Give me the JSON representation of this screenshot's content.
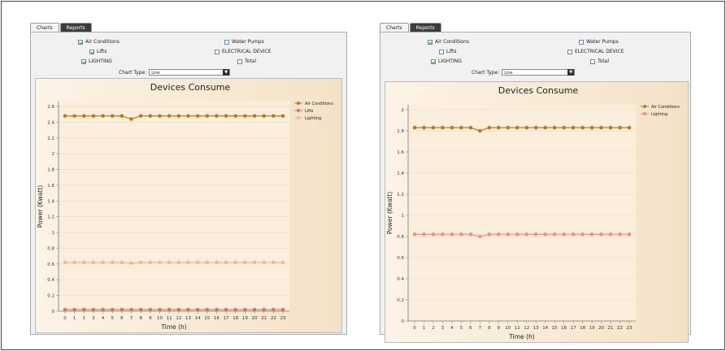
{
  "panels": [
    {
      "tabs": [
        {
          "label": "Charts",
          "active": true
        },
        {
          "label": "Reports",
          "active": false
        }
      ],
      "checkboxes": [
        {
          "label": "Air Conditions",
          "checked": true
        },
        {
          "label": "Lifts",
          "checked": true
        },
        {
          "label": "LIGHTING",
          "checked": true
        },
        {
          "label": "Water Pumps",
          "checked": false
        },
        {
          "label": "ELECTRICAL DEVICE",
          "checked": false
        },
        {
          "label": "Total",
          "checked": false
        }
      ],
      "chart_type_label": "Chart Type:",
      "chart_type_value": "Line",
      "chart_data": {
        "type": "line",
        "title": "Devices Consume",
        "xlabel": "Time (h)",
        "ylabel": "Power (Kwatt)",
        "x": [
          0,
          1,
          2,
          3,
          4,
          5,
          6,
          7,
          8,
          9,
          10,
          11,
          12,
          13,
          14,
          15,
          16,
          17,
          18,
          19,
          20,
          21,
          22,
          23
        ],
        "xticks": [
          "0",
          "1",
          "2",
          "3",
          "4",
          "5",
          "6",
          "7",
          "8",
          "9",
          "10",
          "11",
          "12",
          "13",
          "14",
          "15",
          "16",
          "17",
          "18",
          "19",
          "20",
          "21",
          "22",
          "23"
        ],
        "ylim": [
          0,
          2.6
        ],
        "yticks": [
          "0",
          "0.2",
          "0.4",
          "0.6",
          "0.8",
          "1",
          "1.2",
          "1.4",
          "1.6",
          "1.8",
          "2",
          "2.2",
          "2.4",
          "2.6"
        ],
        "legend_position": "top-right",
        "series": [
          {
            "name": "Air Conditions",
            "color": "#b8791e",
            "values": [
              2.48,
              2.48,
              2.48,
              2.48,
              2.48,
              2.48,
              2.48,
              2.44,
              2.48,
              2.48,
              2.48,
              2.48,
              2.48,
              2.48,
              2.48,
              2.48,
              2.48,
              2.48,
              2.48,
              2.48,
              2.48,
              2.48,
              2.48,
              2.48
            ]
          },
          {
            "name": "Lifts",
            "color": "#c87b5a",
            "values": [
              0.02,
              0.02,
              0.02,
              0.02,
              0.02,
              0.02,
              0.02,
              0.02,
              0.02,
              0.02,
              0.02,
              0.02,
              0.02,
              0.02,
              0.02,
              0.02,
              0.02,
              0.02,
              0.02,
              0.02,
              0.02,
              0.02,
              0.02,
              0.02
            ]
          },
          {
            "name": "Lighting",
            "color": "#f3b98b",
            "values": [
              0.62,
              0.62,
              0.62,
              0.62,
              0.62,
              0.62,
              0.62,
              0.61,
              0.62,
              0.62,
              0.62,
              0.62,
              0.62,
              0.62,
              0.62,
              0.62,
              0.62,
              0.62,
              0.62,
              0.62,
              0.62,
              0.62,
              0.62,
              0.62
            ]
          }
        ]
      }
    },
    {
      "tabs": [
        {
          "label": "Charts",
          "active": true
        },
        {
          "label": "Reports",
          "active": false
        }
      ],
      "checkboxes": [
        {
          "label": "Air Conditions",
          "checked": true
        },
        {
          "label": "Lifts",
          "checked": false
        },
        {
          "label": "LIGHTING",
          "checked": true
        },
        {
          "label": "Water Pumps",
          "checked": false
        },
        {
          "label": "ELECTRICAL DEVICE",
          "checked": false
        },
        {
          "label": "Total",
          "checked": false
        }
      ],
      "chart_type_label": "Chart Type:",
      "chart_type_value": "Line",
      "chart_data": {
        "type": "line",
        "title": "Devices Consume",
        "xlabel": "Time (h)",
        "ylabel": "Power (Kwatt)",
        "x": [
          0,
          1,
          2,
          3,
          4,
          5,
          6,
          7,
          8,
          9,
          10,
          11,
          12,
          13,
          14,
          15,
          16,
          17,
          18,
          19,
          20,
          21,
          22,
          23
        ],
        "xticks": [
          "0",
          "1",
          "2",
          "3",
          "4",
          "5",
          "6",
          "7",
          "8",
          "9",
          "10",
          "11",
          "12",
          "13",
          "14",
          "15",
          "16",
          "17",
          "18",
          "19",
          "20",
          "21",
          "22",
          "23"
        ],
        "ylim": [
          0,
          2
        ],
        "yticks": [
          "0",
          "0.2",
          "0.4",
          "0.6",
          "0.8",
          "1",
          "1.2",
          "1.4",
          "1.6",
          "1.8",
          "2"
        ],
        "legend_position": "top-right",
        "series": [
          {
            "name": "Air Conditions",
            "color": "#b8791e",
            "values": [
              1.83,
              1.83,
              1.83,
              1.83,
              1.83,
              1.83,
              1.83,
              1.8,
              1.83,
              1.83,
              1.83,
              1.83,
              1.83,
              1.83,
              1.83,
              1.83,
              1.83,
              1.83,
              1.83,
              1.83,
              1.83,
              1.83,
              1.83,
              1.83
            ]
          },
          {
            "name": "Lighting",
            "color": "#f08c8c",
            "values": [
              0.82,
              0.82,
              0.82,
              0.82,
              0.82,
              0.82,
              0.82,
              0.8,
              0.82,
              0.82,
              0.82,
              0.82,
              0.82,
              0.82,
              0.82,
              0.82,
              0.82,
              0.82,
              0.82,
              0.82,
              0.82,
              0.82,
              0.82,
              0.82
            ]
          }
        ]
      }
    }
  ]
}
